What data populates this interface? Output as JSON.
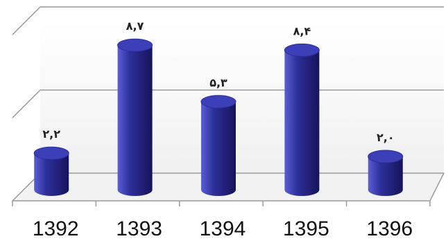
{
  "chart_data": {
    "type": "bar",
    "style": "3d-cylinder",
    "categories": [
      "1392",
      "1393",
      "1394",
      "1395",
      "1396"
    ],
    "values": [
      2.2,
      8.7,
      5.3,
      8.4,
      2.0
    ],
    "value_labels": [
      "۲,۲",
      "۸,۷",
      "۵,۳",
      "۸,۴",
      "۲,۰"
    ],
    "title": "",
    "xlabel": "",
    "ylabel": "",
    "ylim": [
      0,
      10
    ],
    "grid": true,
    "legend": "none",
    "colors": {
      "bar_light": "#5a5fd6",
      "bar_mid": "#2e2f9a",
      "bar_dark": "#14145a",
      "bar_top": "#3b3fb8",
      "floor": "#f2f2f2",
      "wall": "#f7f7f7",
      "grid": "#9a9a9a"
    }
  }
}
